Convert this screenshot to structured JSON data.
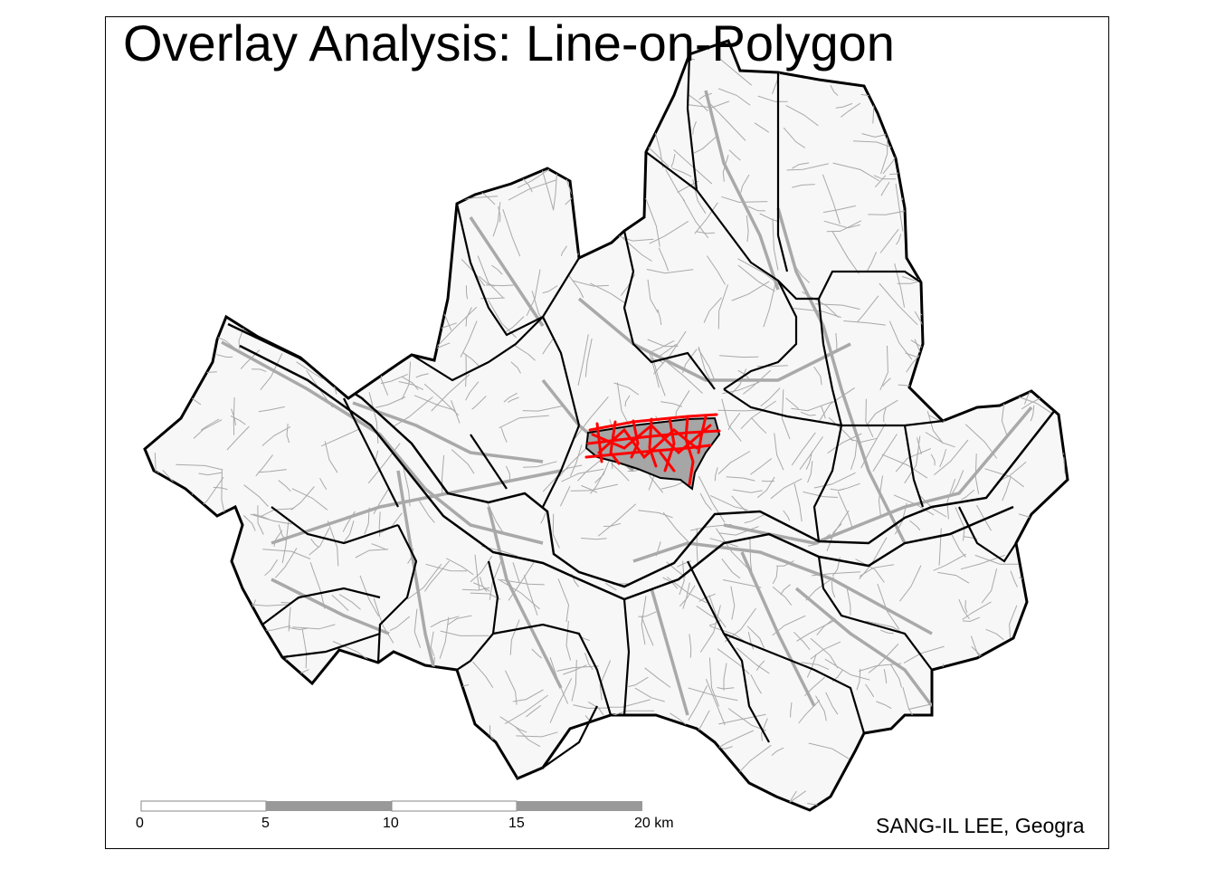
{
  "title": "Overlay Analysis: Line-on-Polygon",
  "scale_bar": {
    "ticks": [
      "0",
      "5",
      "10",
      "15",
      "20 km"
    ],
    "unit": "km"
  },
  "credit": "SANG-IL LEE, Geogra",
  "colors": {
    "land_fill": "#f7f7f7",
    "district_border": "#000000",
    "roads": "#a9a9a9",
    "selected_district_fill": "#a6a6a6",
    "selected_roads": "#ff0000",
    "scale_light": "#ffffff",
    "scale_dark": "#999999"
  }
}
